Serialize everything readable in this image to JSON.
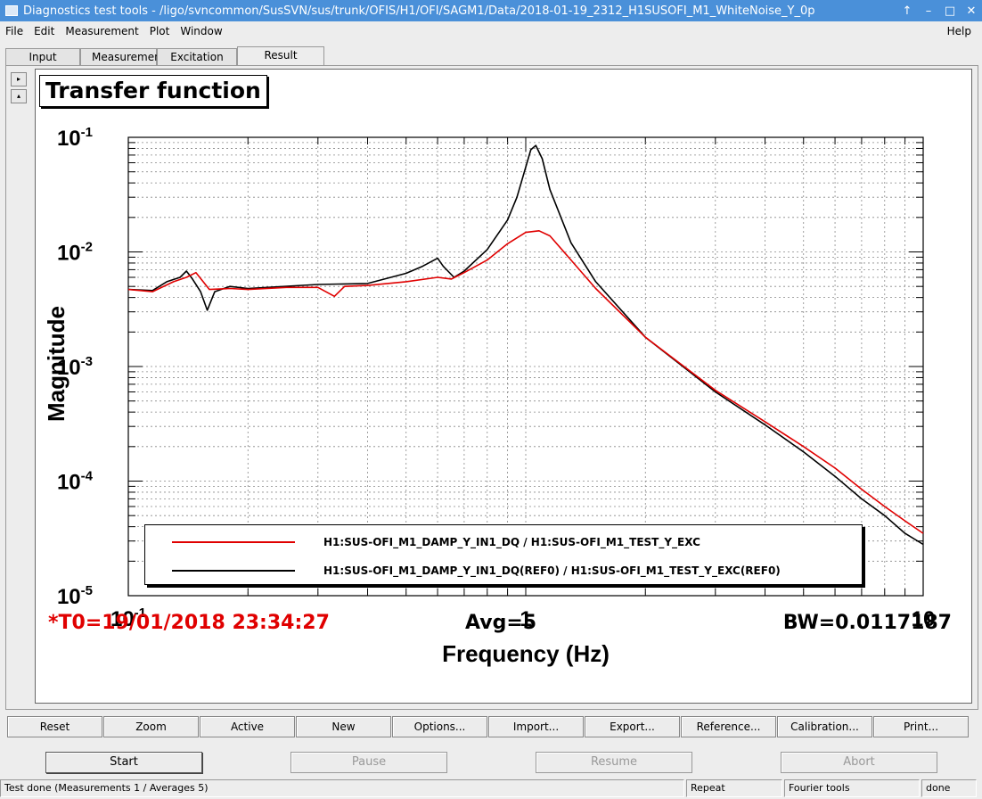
{
  "window": {
    "title": "Diagnostics test tools - /ligo/svncommon/SusSVN/sus/trunk/OFIS/H1/OFI/SAGM1/Data/2018-01-19_2312_H1SUSOFI_M1_WhiteNoise_Y_0p",
    "buttons": [
      "↑",
      "–",
      "□",
      "✕"
    ]
  },
  "menu": {
    "file": "File",
    "edit": "Edit",
    "measurement": "Measurement",
    "plot": "Plot",
    "window": "Window",
    "help": "Help"
  },
  "tabs": [
    "Input",
    "Measurement",
    "Excitation",
    "Result"
  ],
  "side_buttons": [
    "▸",
    "▴"
  ],
  "status_line": {
    "t0": "*T0=19/01/2018 23:34:27",
    "avg": "Avg=5",
    "bw": "BW=0.0117187"
  },
  "toolbar": [
    "Reset",
    "Zoom",
    "Active",
    "New",
    "Options...",
    "Import...",
    "Export...",
    "Reference...",
    "Calibration...",
    "Print..."
  ],
  "actions": {
    "start": "Start",
    "pause": "Pause",
    "resume": "Resume",
    "abort": "Abort"
  },
  "statusbar": {
    "message": "Test done (Measurements 1 / Averages 5)",
    "repeat": "Repeat",
    "fourier": "Fourier tools",
    "state": "done"
  },
  "chart_data": {
    "type": "line",
    "title": "Transfer function",
    "xlabel": "Frequency (Hz)",
    "ylabel": "Magnitude",
    "x_scale": "log",
    "y_scale": "log",
    "xlim": [
      0.1,
      10
    ],
    "ylim": [
      1e-05,
      0.1
    ],
    "grid": true,
    "x_ticks": [
      {
        "value": 0.1,
        "mantissa": "10",
        "exp": "-1"
      },
      {
        "value": 1,
        "mantissa": "1",
        "exp": ""
      },
      {
        "value": 10,
        "mantissa": "10",
        "exp": ""
      }
    ],
    "y_ticks": [
      {
        "value": 0.1,
        "mantissa": "10",
        "exp": "-1"
      },
      {
        "value": 0.01,
        "mantissa": "10",
        "exp": "-2"
      },
      {
        "value": 0.001,
        "mantissa": "10",
        "exp": "-3"
      },
      {
        "value": 0.0001,
        "mantissa": "10",
        "exp": "-4"
      },
      {
        "value": 1e-05,
        "mantissa": "10",
        "exp": "-5"
      }
    ],
    "legend_position": "bottom",
    "series": [
      {
        "name": "H1:SUS-OFI_M1_DAMP_Y_IN1_DQ / H1:SUS-OFI_M1_TEST_Y_EXC",
        "color": "#e00000",
        "x": [
          0.1,
          0.115,
          0.13,
          0.14,
          0.148,
          0.16,
          0.18,
          0.2,
          0.25,
          0.3,
          0.33,
          0.35,
          0.4,
          0.5,
          0.6,
          0.65,
          0.7,
          0.8,
          0.9,
          1.0,
          1.08,
          1.15,
          1.3,
          1.5,
          2.0,
          3.0,
          4.0,
          5.0,
          6.0,
          7.0,
          8.0,
          9.0,
          10.0
        ],
        "y": [
          0.0047,
          0.0045,
          0.0055,
          0.006,
          0.0066,
          0.0047,
          0.0048,
          0.0047,
          0.0049,
          0.0049,
          0.0041,
          0.005,
          0.0051,
          0.0055,
          0.006,
          0.0058,
          0.0066,
          0.0085,
          0.0118,
          0.0148,
          0.0153,
          0.0138,
          0.0085,
          0.0048,
          0.0018,
          0.00062,
          0.00033,
          0.0002,
          0.00013,
          8.5e-05,
          6e-05,
          4.5e-05,
          3.5e-05
        ]
      },
      {
        "name": "H1:SUS-OFI_M1_DAMP_Y_IN1_DQ(REF0) / H1:SUS-OFI_M1_TEST_Y_EXC(REF0)",
        "color": "#000000",
        "x": [
          0.1,
          0.115,
          0.125,
          0.135,
          0.14,
          0.145,
          0.152,
          0.158,
          0.165,
          0.18,
          0.2,
          0.3,
          0.4,
          0.5,
          0.55,
          0.6,
          0.62,
          0.66,
          0.7,
          0.8,
          0.9,
          0.95,
          1.0,
          1.03,
          1.06,
          1.1,
          1.15,
          1.3,
          1.5,
          2.0,
          3.0,
          4.0,
          5.0,
          6.0,
          7.0,
          8.0,
          9.0,
          10.0
        ],
        "y": [
          0.0047,
          0.0046,
          0.0055,
          0.006,
          0.0068,
          0.0058,
          0.0045,
          0.0031,
          0.0045,
          0.005,
          0.0048,
          0.0052,
          0.0053,
          0.0065,
          0.0075,
          0.0088,
          0.0075,
          0.006,
          0.0068,
          0.0105,
          0.019,
          0.03,
          0.055,
          0.078,
          0.085,
          0.065,
          0.035,
          0.012,
          0.0055,
          0.0018,
          0.0006,
          0.00031,
          0.00018,
          0.00011,
          7e-05,
          5e-05,
          3.5e-05,
          2.8e-05
        ]
      }
    ]
  }
}
